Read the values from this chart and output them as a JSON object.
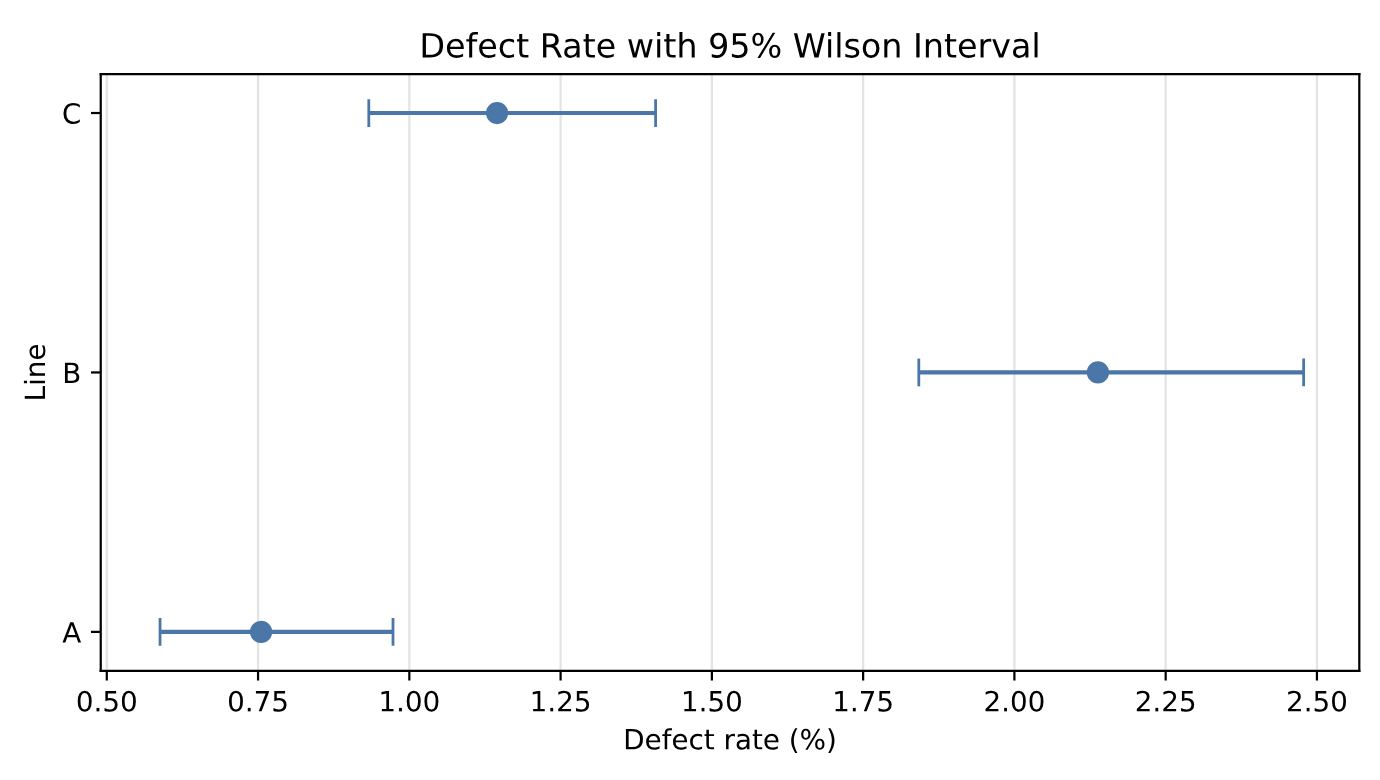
{
  "chart_data": {
    "type": "scatter",
    "orientation": "horizontal",
    "title": "Defect Rate with 95% Wilson Interval",
    "xlabel": "Defect rate (%)",
    "ylabel": "Line",
    "categories": [
      "C",
      "B",
      "A"
    ],
    "values": [
      1.145,
      2.138,
      0.755
    ],
    "errors": [
      [
        0.933,
        1.407
      ],
      [
        1.842,
        2.478
      ],
      [
        0.588,
        0.973
      ]
    ],
    "color": "#4a76a8",
    "marker": "circle",
    "xlim": [
      0.49,
      2.57
    ],
    "xticks": [
      {
        "value": 0.5,
        "label": "0.50"
      },
      {
        "value": 0.75,
        "label": "0.75"
      },
      {
        "value": 1.0,
        "label": "1.00"
      },
      {
        "value": 1.25,
        "label": "1.25"
      },
      {
        "value": 1.5,
        "label": "1.50"
      },
      {
        "value": 1.75,
        "label": "1.75"
      },
      {
        "value": 2.0,
        "label": "2.00"
      },
      {
        "value": 2.25,
        "label": "2.25"
      },
      {
        "value": 2.5,
        "label": "2.50"
      }
    ],
    "grid": "x"
  }
}
